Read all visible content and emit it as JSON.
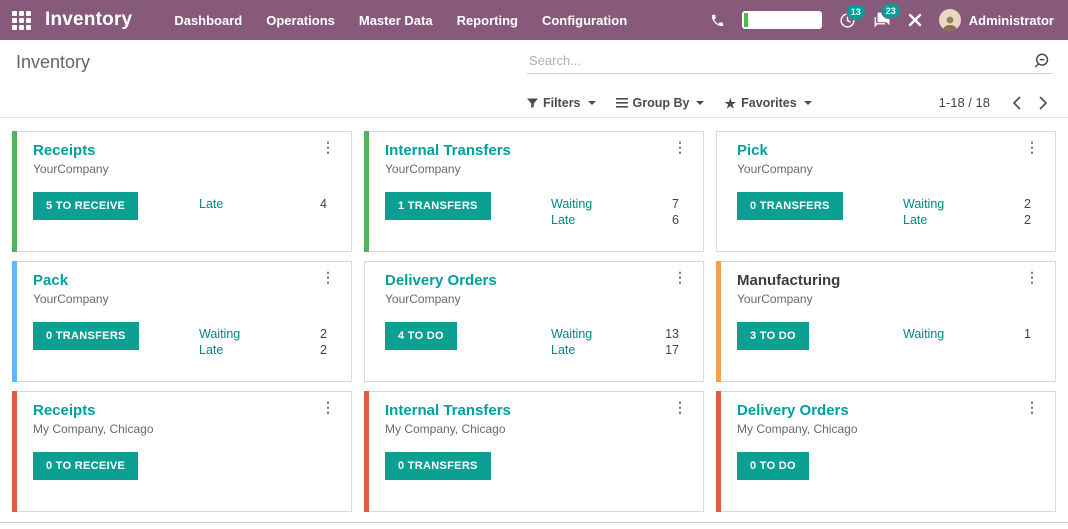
{
  "topbar": {
    "app_title": "Inventory",
    "menu": [
      "Dashboard",
      "Operations",
      "Master Data",
      "Reporting",
      "Configuration"
    ],
    "activity_count": "13",
    "message_count": "23",
    "user": "Administrator"
  },
  "control_panel": {
    "breadcrumb": "Inventory",
    "search_placeholder": "Search...",
    "filters_label": "Filters",
    "group_by_label": "Group By",
    "favorites_label": "Favorites",
    "pager": "1-18 / 18"
  },
  "colors": {
    "navbar": "#875A7B",
    "accent_teal": "#00A09D",
    "accent_green": "#57B25E",
    "accent_blue": "#64B5F6",
    "accent_orange": "#F0A24F",
    "accent_red": "#E7584C",
    "timer_green": "#45C045"
  },
  "icons": [
    "apps-menu",
    "phone",
    "timer",
    "activities-clock",
    "messages-chat",
    "tools-cross",
    "user-avatar",
    "search-magnifier",
    "filter-funnel",
    "group-by-lines",
    "favorites-star",
    "pager-prev",
    "pager-next",
    "kebab-menu"
  ],
  "cards": [
    {
      "title": "Receipts",
      "company": "YourCompany",
      "button": "5 TO RECEIVE",
      "accent": "#57B25E",
      "title_dark": false,
      "stats": [
        {
          "label": "Late",
          "value": "4"
        }
      ]
    },
    {
      "title": "Internal Transfers",
      "company": "YourCompany",
      "button": "1 TRANSFERS",
      "accent": "#57B25E",
      "title_dark": false,
      "stats": [
        {
          "label": "Waiting",
          "value": "7"
        },
        {
          "label": "Late",
          "value": "6"
        }
      ]
    },
    {
      "title": "Pick",
      "company": "YourCompany",
      "button": "0 TRANSFERS",
      "accent": null,
      "title_dark": false,
      "stats": [
        {
          "label": "Waiting",
          "value": "2"
        },
        {
          "label": "Late",
          "value": "2"
        }
      ]
    },
    {
      "title": "Pack",
      "company": "YourCompany",
      "button": "0 TRANSFERS",
      "accent": "#64B5F6",
      "title_dark": false,
      "stats": [
        {
          "label": "Waiting",
          "value": "2"
        },
        {
          "label": "Late",
          "value": "2"
        }
      ]
    },
    {
      "title": "Delivery Orders",
      "company": "YourCompany",
      "button": "4 TO DO",
      "accent": null,
      "title_dark": false,
      "stats": [
        {
          "label": "Waiting",
          "value": "13"
        },
        {
          "label": "Late",
          "value": "17"
        }
      ]
    },
    {
      "title": "Manufacturing",
      "company": "YourCompany",
      "button": "3 TO DO",
      "accent": "#F0A24F",
      "title_dark": true,
      "stats": [
        {
          "label": "Waiting",
          "value": "1"
        }
      ]
    },
    {
      "title": "Receipts",
      "company": "My Company, Chicago",
      "button": "0 TO RECEIVE",
      "accent": "#E7584C",
      "title_dark": false,
      "stats": []
    },
    {
      "title": "Internal Transfers",
      "company": "My Company, Chicago",
      "button": "0 TRANSFERS",
      "accent": "#E7584C",
      "title_dark": false,
      "stats": []
    },
    {
      "title": "Delivery Orders",
      "company": "My Company, Chicago",
      "button": "0 TO DO",
      "accent": "#E7584C",
      "title_dark": false,
      "stats": []
    }
  ]
}
